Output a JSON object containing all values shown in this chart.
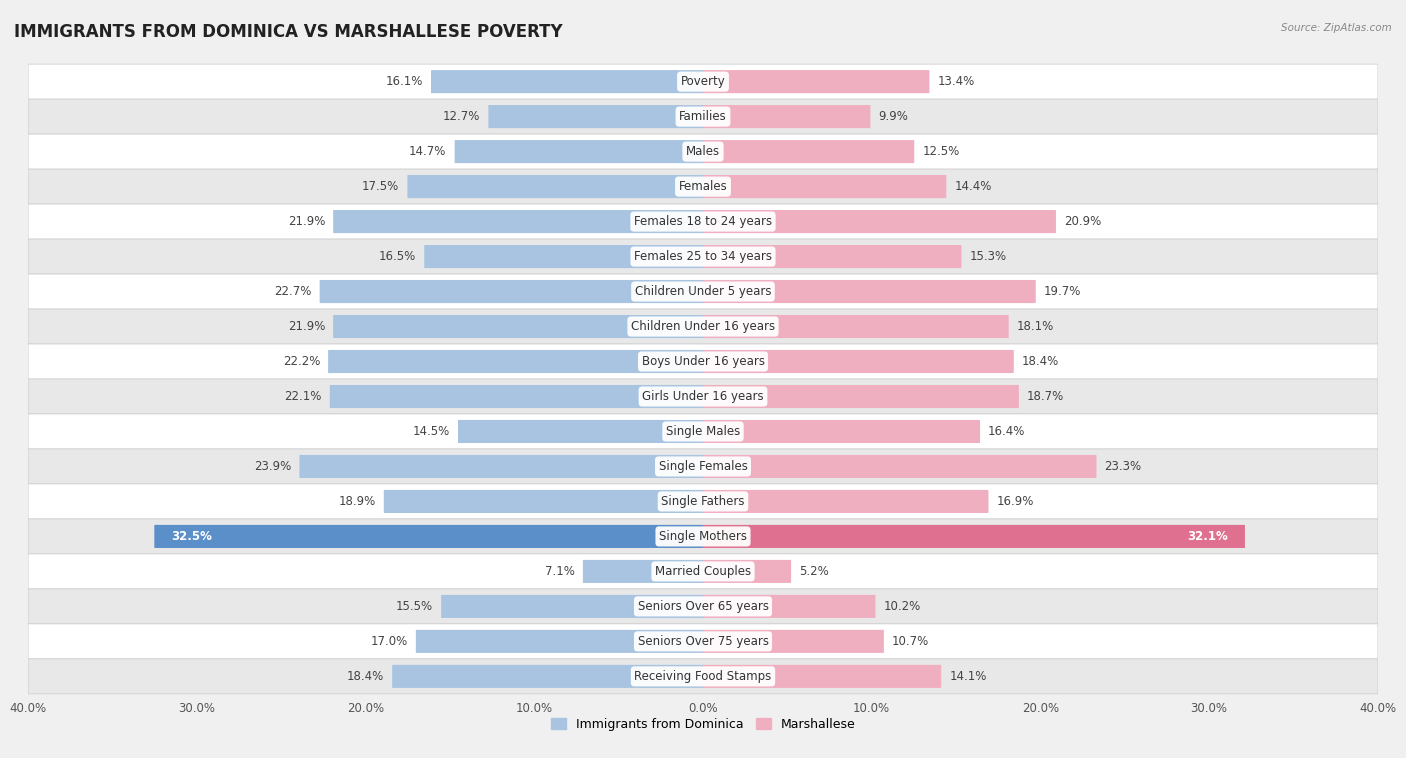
{
  "title": "IMMIGRANTS FROM DOMINICA VS MARSHALLESE POVERTY",
  "source": "Source: ZipAtlas.com",
  "categories": [
    "Poverty",
    "Families",
    "Males",
    "Females",
    "Females 18 to 24 years",
    "Females 25 to 34 years",
    "Children Under 5 years",
    "Children Under 16 years",
    "Boys Under 16 years",
    "Girls Under 16 years",
    "Single Males",
    "Single Females",
    "Single Fathers",
    "Single Mothers",
    "Married Couples",
    "Seniors Over 65 years",
    "Seniors Over 75 years",
    "Receiving Food Stamps"
  ],
  "left_values": [
    16.1,
    12.7,
    14.7,
    17.5,
    21.9,
    16.5,
    22.7,
    21.9,
    22.2,
    22.1,
    14.5,
    23.9,
    18.9,
    32.5,
    7.1,
    15.5,
    17.0,
    18.4
  ],
  "right_values": [
    13.4,
    9.9,
    12.5,
    14.4,
    20.9,
    15.3,
    19.7,
    18.1,
    18.4,
    18.7,
    16.4,
    23.3,
    16.9,
    32.1,
    5.2,
    10.2,
    10.7,
    14.1
  ],
  "left_color": "#a8c4e0",
  "right_color": "#f0afc0",
  "highlight_left_color": "#5b8fc9",
  "highlight_right_color": "#e07090",
  "highlight_rows": [
    13
  ],
  "axis_max": 40.0,
  "bg_color": "#f0f0f0",
  "row_bg_light": "#ffffff",
  "row_bg_dark": "#e8e8e8",
  "legend_left": "Immigrants from Dominica",
  "legend_right": "Marshallese",
  "title_fontsize": 12,
  "label_fontsize": 8.5,
  "value_fontsize": 8.5
}
